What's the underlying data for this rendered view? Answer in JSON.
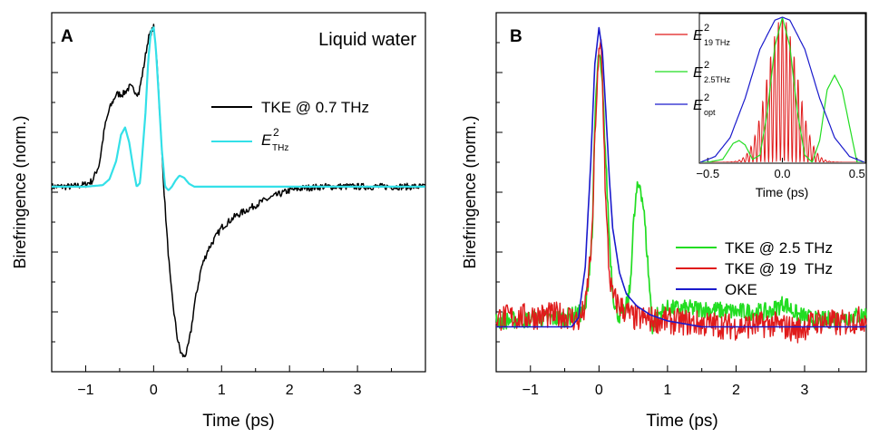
{
  "chart_data": [
    {
      "type": "line",
      "panel_letter": "A",
      "title": "Liquid water",
      "xlabel": "Time (ps)",
      "ylabel": "Birefringence (norm.)",
      "xlim": [
        -1.5,
        4.0
      ],
      "ylim": [
        -2.5,
        2.35
      ],
      "x_ticks": [
        -1,
        0,
        1,
        2,
        3
      ],
      "y_labels_shown": false,
      "grid": false,
      "legend_placement": "right",
      "series": [
        {
          "name": "TKE @ 0.7 THz",
          "color": "#000000",
          "x": [
            -1.5,
            -1.2,
            -1.0,
            -0.9,
            -0.8,
            -0.72,
            -0.65,
            -0.55,
            -0.45,
            -0.35,
            -0.28,
            -0.22,
            -0.15,
            -0.08,
            -0.03,
            0.0,
            0.05,
            0.1,
            0.15,
            0.2,
            0.25,
            0.3,
            0.35,
            0.4,
            0.45,
            0.5,
            0.55,
            0.6,
            0.7,
            0.8,
            0.9,
            1.0,
            1.2,
            1.4,
            1.6,
            1.8,
            2.0,
            2.2,
            2.5,
            3.0,
            3.5,
            4.0
          ],
          "y": [
            0.0,
            0.0,
            0.03,
            0.08,
            0.3,
            0.8,
            1.05,
            1.25,
            1.25,
            1.35,
            1.3,
            1.25,
            1.6,
            2.0,
            2.1,
            2.15,
            1.7,
            0.8,
            0.0,
            -0.7,
            -1.3,
            -1.7,
            -2.05,
            -2.25,
            -2.3,
            -2.2,
            -1.95,
            -1.6,
            -1.1,
            -0.85,
            -0.7,
            -0.55,
            -0.4,
            -0.3,
            -0.2,
            -0.12,
            -0.05,
            -0.02,
            0.0,
            0.0,
            0.0,
            0.0
          ]
        },
        {
          "name": "E²THz",
          "label_main": "E",
          "label_sup": "2",
          "label_sub": "THz",
          "color": "#33e0e8",
          "x": [
            -1.5,
            -1.0,
            -0.75,
            -0.65,
            -0.55,
            -0.48,
            -0.42,
            -0.36,
            -0.3,
            -0.25,
            -0.2,
            -0.17,
            -0.12,
            -0.08,
            -0.04,
            0.0,
            0.03,
            0.07,
            0.12,
            0.17,
            0.22,
            0.27,
            0.32,
            0.38,
            0.45,
            0.52,
            0.6,
            0.8,
            1.5,
            4.0
          ],
          "y": [
            0.0,
            0.0,
            0.02,
            0.1,
            0.35,
            0.7,
            0.8,
            0.6,
            0.25,
            0.0,
            0.05,
            0.4,
            1.0,
            1.7,
            2.1,
            2.15,
            1.9,
            1.3,
            0.5,
            0.0,
            -0.05,
            0.0,
            0.08,
            0.15,
            0.12,
            0.04,
            0.0,
            0.0,
            0.0,
            0.0
          ]
        }
      ]
    },
    {
      "type": "line",
      "panel_letter": "B",
      "xlabel": "Time (ps)",
      "ylabel": "Birefringence (norm.)",
      "xlim": [
        -1.5,
        3.9
      ],
      "ylim": [
        -0.15,
        1.05
      ],
      "x_ticks": [
        -1,
        0,
        1,
        2,
        3
      ],
      "y_labels_shown": false,
      "grid": false,
      "legend_placement": "bottom-right",
      "series": [
        {
          "name": "TKE @ 2.5 THz",
          "color": "#22dd22",
          "x": [
            -1.5,
            -0.5,
            -0.2,
            -0.1,
            -0.05,
            0.0,
            0.05,
            0.1,
            0.15,
            0.2,
            0.25,
            0.3,
            0.38,
            0.45,
            0.5,
            0.55,
            0.6,
            0.65,
            0.7,
            0.78,
            0.85,
            1.0,
            1.5,
            2.0,
            2.5,
            2.7,
            2.9,
            3.2,
            3.9
          ],
          "y": [
            0.02,
            0.03,
            0.05,
            0.3,
            0.75,
            0.92,
            0.8,
            0.55,
            0.3,
            0.12,
            0.05,
            0.04,
            0.05,
            0.12,
            0.33,
            0.45,
            0.48,
            0.4,
            0.25,
            0.0,
            0.04,
            0.06,
            0.06,
            0.05,
            0.05,
            0.08,
            0.04,
            0.02,
            0.04
          ]
        },
        {
          "name": "TKE @ 19  THz",
          "color": "#e01b1b",
          "x": [
            -1.5,
            -0.5,
            -0.3,
            -0.2,
            -0.1,
            -0.05,
            0.0,
            0.03,
            0.06,
            0.1,
            0.15,
            0.2,
            0.3,
            0.5,
            1.0,
            1.5,
            2.0,
            2.5,
            2.9,
            3.2,
            3.5,
            3.9
          ],
          "y": [
            0.03,
            0.04,
            0.02,
            0.06,
            0.3,
            0.7,
            0.9,
            0.95,
            0.75,
            0.4,
            0.18,
            0.1,
            0.07,
            0.03,
            0.02,
            0.01,
            0.0,
            0.01,
            -0.01,
            0.02,
            0.01,
            0.03
          ]
        },
        {
          "name": "OKE",
          "color": "#1a1acc",
          "x": [
            -1.5,
            -0.4,
            -0.3,
            -0.2,
            -0.12,
            -0.06,
            0.0,
            0.05,
            0.1,
            0.15,
            0.2,
            0.3,
            0.4,
            0.55,
            0.75,
            1.0,
            1.5,
            2.0,
            3.0,
            3.9
          ],
          "y": [
            0.0,
            0.0,
            0.03,
            0.2,
            0.55,
            0.88,
            1.0,
            0.92,
            0.72,
            0.5,
            0.33,
            0.18,
            0.11,
            0.07,
            0.04,
            0.02,
            0.0,
            0.0,
            0.0,
            0.0
          ]
        }
      ],
      "inset": {
        "xlabel": "Time (ps)",
        "xlim": [
          -0.55,
          0.55
        ],
        "ylim": [
          0.0,
          1.0
        ],
        "x_tick_labels": [
          "−0.5",
          "0.0",
          "0.5"
        ],
        "x_ticks": [
          -0.5,
          0.0,
          0.5
        ],
        "series": [
          {
            "name": "E²19 THz",
            "label_main": "E",
            "label_sup": "2",
            "label_sub": "19 THz",
            "color": "#e01b1b",
            "envelope_sigma_ps": 0.1,
            "carrier_thz": 38
          },
          {
            "name": "E²2.5THz",
            "label_main": "E",
            "label_sup": "2",
            "label_sub": "2.5THz",
            "color": "#22dd22",
            "x": [
              -0.5,
              -0.4,
              -0.33,
              -0.29,
              -0.25,
              -0.2,
              -0.15,
              -0.1,
              -0.05,
              0.0,
              0.05,
              0.1,
              0.15,
              0.2,
              0.25,
              0.3,
              0.35,
              0.4,
              0.45,
              0.5
            ],
            "y": [
              0.0,
              0.02,
              0.13,
              0.15,
              0.12,
              0.02,
              0.05,
              0.35,
              0.8,
              1.0,
              0.8,
              0.35,
              0.05,
              0.0,
              0.15,
              0.5,
              0.6,
              0.5,
              0.25,
              0.0
            ]
          },
          {
            "name": "E²opt",
            "label_main": "E",
            "label_sup": "2",
            "label_sub": "opt",
            "color": "#1a1acc",
            "x": [
              -0.55,
              -0.45,
              -0.35,
              -0.25,
              -0.15,
              -0.05,
              0.0,
              0.05,
              0.15,
              0.25,
              0.35,
              0.45,
              0.55
            ],
            "y": [
              0.0,
              0.04,
              0.17,
              0.44,
              0.78,
              0.98,
              1.0,
              0.98,
              0.78,
              0.44,
              0.17,
              0.04,
              0.0
            ]
          }
        ]
      }
    }
  ]
}
